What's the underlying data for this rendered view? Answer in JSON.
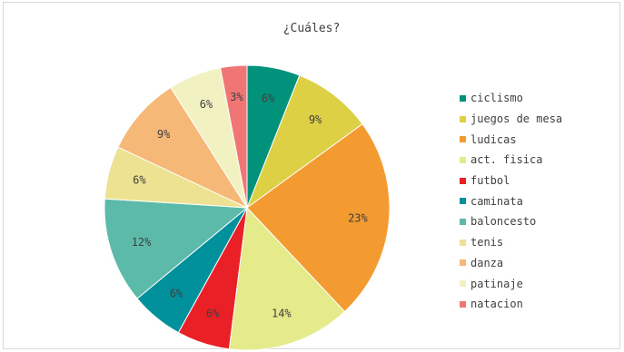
{
  "chart_data": {
    "type": "pie",
    "title": "¿Cuáles?",
    "labels": [
      "ciclismo",
      "juegos de mesa",
      "ludicas",
      "act. fisica",
      "futbol",
      "caminata",
      "baloncesto",
      "tenis",
      "danza",
      "patinaje",
      "natacion"
    ],
    "values": [
      6,
      9,
      23,
      14,
      6,
      6,
      12,
      6,
      9,
      6,
      3
    ],
    "value_labels": [
      "6%",
      "9%",
      "23%",
      "14%",
      "6%",
      "6%",
      "12%",
      "6%",
      "9%",
      "6%",
      "3%"
    ],
    "colors": [
      "#00927b",
      "#ddd044",
      "#f39a31",
      "#e5ea8a",
      "#e92127",
      "#00919c",
      "#5bbaa8",
      "#ede292",
      "#f6b877",
      "#f2f1c2",
      "#f07575"
    ],
    "legend_position": "right"
  }
}
